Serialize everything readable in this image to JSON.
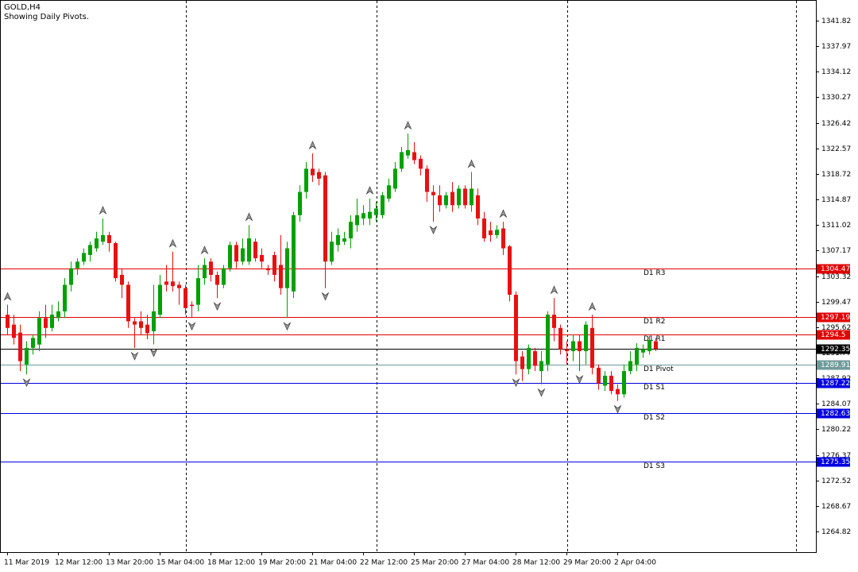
{
  "chart_data": {
    "type": "candlestick",
    "title": "GOLD,H4",
    "subtitle": "Showing Daily Pivots.",
    "categories": [
      "11 Mar 2019",
      null,
      null,
      null,
      null,
      null,
      null,
      null,
      "12 Mar 12:00",
      null,
      null,
      null,
      null,
      null,
      null,
      null,
      "13 Mar 20:00",
      null,
      null,
      null,
      null,
      null,
      null,
      null,
      "15 Mar 04:00",
      null,
      null,
      null,
      null,
      null,
      null,
      null,
      "18 Mar 12:00",
      null,
      null,
      null,
      null,
      null,
      null,
      null,
      "19 Mar 20:00",
      null,
      null,
      null,
      null,
      null,
      null,
      null,
      "21 Mar 04:00",
      null,
      null,
      null,
      null,
      null,
      null,
      null,
      "22 Mar 12:00",
      null,
      null,
      null,
      null,
      null,
      null,
      null,
      "25 Mar 20:00",
      null,
      null,
      null,
      null,
      null,
      null,
      null,
      "27 Mar 04:00",
      null,
      null,
      null,
      null,
      null,
      null,
      null,
      "28 Mar 12:00",
      null,
      null,
      null,
      null,
      null,
      null,
      null,
      "29 Mar 20:00",
      null,
      null,
      null,
      null,
      null,
      null,
      null,
      "2 Apr 04:00",
      null,
      null,
      null,
      null,
      null,
      null
    ],
    "open": [
      1297.5,
      1296,
      1294.8,
      1290,
      1292.5,
      1293,
      1297,
      1295.5,
      1297,
      1298,
      1302,
      1304.5,
      1305.5,
      1306.5,
      1307.5,
      1308.5,
      1309.5,
      1308.3,
      1303.5,
      1302,
      1296.5,
      1296.5,
      1296,
      1295,
      1297.5,
      1302.5,
      1302.5,
      1302,
      1301.5,
      1299,
      1299,
      1303,
      1305.5,
      1303.5,
      1302,
      1304.5,
      1308,
      1305.5,
      1305.5,
      1308.5,
      1306.5,
      1304.5,
      1306.5,
      1305,
      1301.5,
      1301,
      1312.5,
      1316,
      1319.5,
      1319,
      1318.5,
      1305.5,
      1308,
      1308.5,
      1309,
      1311,
      1312,
      1312,
      1312.5,
      1312.5,
      1315,
      1316.5,
      1319.5,
      1321.5,
      1322,
      1321,
      1319.5,
      1316,
      1315.5,
      1314,
      1316,
      1314,
      1316.5,
      1314,
      1315.5,
      1312,
      1310.2,
      1309.5,
      1310.5,
      1307.8,
      1300.5,
      1291.2,
      1289.3,
      1292,
      1289,
      1290,
      1297.5,
      1295.5,
      1292.3,
      1292,
      1293.5,
      1292,
      1295.5,
      1289.5,
      1286.8,
      1288.3,
      1286.3,
      1285.5,
      1289,
      1290,
      1291.8,
      1292,
      1293.5
    ],
    "high": [
      1299,
      1297.5,
      1296,
      1293.5,
      1294.5,
      1298,
      1299,
      1299,
      1299.5,
      1303,
      1305.5,
      1306,
      1307.5,
      1308.5,
      1310,
      1312,
      1310,
      1308.5,
      1304.5,
      1302.5,
      1297,
      1298,
      1297.5,
      1302,
      1303.5,
      1305,
      1307,
      1302.5,
      1302,
      1299.5,
      1305,
      1306,
      1306,
      1304,
      1305,
      1308.5,
      1308.5,
      1309,
      1311,
      1309,
      1307.5,
      1305,
      1307,
      1309.5,
      1308.5,
      1313,
      1317,
      1320.5,
      1321.8,
      1319.5,
      1319,
      1310,
      1310.5,
      1310,
      1312.5,
      1315,
      1314,
      1315,
      1314.5,
      1316,
      1318,
      1320.5,
      1322.8,
      1324.8,
      1323.5,
      1321.5,
      1320,
      1317,
      1317,
      1316,
      1317.5,
      1317,
      1317,
      1319,
      1316.5,
      1313,
      1311.5,
      1311,
      1311.5,
      1308,
      1301,
      1292,
      1293,
      1292.5,
      1292,
      1298,
      1300,
      1296,
      1293.5,
      1294.5,
      1294.5,
      1296.5,
      1297.5,
      1290,
      1289,
      1289,
      1287,
      1290,
      1292,
      1293.2,
      1293,
      1294.3,
      1294
    ],
    "low": [
      1294.5,
      1293,
      1289,
      1288.5,
      1291.5,
      1292,
      1294,
      1295,
      1296.5,
      1297,
      1301,
      1303.5,
      1305,
      1305.5,
      1307,
      1308,
      1307,
      1302.5,
      1300,
      1295.5,
      1292.5,
      1294.5,
      1293.8,
      1293,
      1297,
      1301,
      1301,
      1299,
      1297.5,
      1297,
      1298,
      1302,
      1302.5,
      1300,
      1301.5,
      1304,
      1304.5,
      1305,
      1305,
      1305.5,
      1304.5,
      1303.5,
      1302.5,
      1300.5,
      1297,
      1300,
      1311.5,
      1315,
      1317.5,
      1317,
      1301.5,
      1305,
      1307,
      1308,
      1307.5,
      1310,
      1311,
      1311,
      1311.5,
      1312,
      1314.5,
      1316,
      1319,
      1321,
      1320.2,
      1318.5,
      1314.5,
      1311.5,
      1313,
      1313.5,
      1313,
      1313.5,
      1313.5,
      1313,
      1311,
      1308.5,
      1308.5,
      1309,
      1306.5,
      1299.5,
      1288.5,
      1287.5,
      1288.5,
      1289,
      1287,
      1289,
      1293.5,
      1291.5,
      1290,
      1290.5,
      1289,
      1290,
      1288.5,
      1286.2,
      1286,
      1285.5,
      1284.5,
      1285,
      1288.5,
      1289,
      1291,
      1291.5,
      1292
    ],
    "close": [
      1295.5,
      1294,
      1290.5,
      1292.5,
      1294,
      1297,
      1295.5,
      1297.5,
      1298,
      1302,
      1304.5,
      1305.5,
      1306.8,
      1308,
      1309,
      1309.5,
      1308.3,
      1303,
      1302,
      1296.5,
      1296,
      1295.5,
      1294.7,
      1298,
      1302,
      1302,
      1301.8,
      1301.5,
      1298.5,
      1298.8,
      1303,
      1305,
      1303.5,
      1302,
      1304.5,
      1308,
      1305.5,
      1307.5,
      1309,
      1306,
      1305.5,
      1304.2,
      1303.5,
      1301.5,
      1307.5,
      1312.5,
      1316,
      1319.5,
      1318.5,
      1318,
      1305.5,
      1308.5,
      1309.5,
      1309,
      1311.5,
      1312.5,
      1312.8,
      1313,
      1313.5,
      1315.5,
      1317,
      1319.5,
      1322,
      1322.3,
      1320.8,
      1319.5,
      1316,
      1315.5,
      1314,
      1315.5,
      1314,
      1316.5,
      1314,
      1316.5,
      1312,
      1309,
      1309.5,
      1310.3,
      1307.5,
      1300.5,
      1290.5,
      1289.3,
      1292.5,
      1289.8,
      1290.5,
      1297.5,
      1295.5,
      1292.3,
      1292,
      1293.5,
      1292,
      1296,
      1289.5,
      1287.2,
      1288.3,
      1286,
      1285.5,
      1289,
      1290.5,
      1292.5,
      1292.3,
      1293.7,
      1292.35
    ],
    "fractals_up": [
      1299,
      null,
      null,
      null,
      null,
      null,
      null,
      null,
      null,
      null,
      null,
      null,
      null,
      null,
      null,
      1312,
      null,
      null,
      null,
      null,
      null,
      null,
      null,
      null,
      null,
      null,
      1307,
      null,
      null,
      null,
      null,
      1306,
      null,
      null,
      null,
      null,
      null,
      null,
      1311,
      null,
      null,
      null,
      null,
      null,
      null,
      null,
      null,
      null,
      1321.8,
      null,
      null,
      null,
      null,
      null,
      null,
      null,
      null,
      1315,
      null,
      null,
      null,
      null,
      null,
      1324.8,
      null,
      null,
      null,
      null,
      null,
      null,
      null,
      null,
      null,
      1319,
      null,
      null,
      null,
      null,
      1311.5,
      null,
      null,
      null,
      null,
      null,
      null,
      null,
      1300,
      null,
      null,
      null,
      null,
      null,
      1297.5,
      null,
      null,
      null,
      null,
      null,
      null,
      null,
      null,
      null,
      null
    ],
    "fractals_down": [
      null,
      null,
      null,
      1288.5,
      null,
      null,
      null,
      null,
      null,
      null,
      null,
      null,
      null,
      null,
      null,
      null,
      null,
      null,
      null,
      null,
      1292.5,
      null,
      null,
      1293,
      null,
      null,
      null,
      null,
      null,
      1297,
      null,
      null,
      null,
      1300,
      null,
      null,
      null,
      null,
      null,
      null,
      null,
      null,
      null,
      null,
      1297,
      null,
      null,
      null,
      null,
      null,
      1301.5,
      null,
      null,
      null,
      null,
      null,
      null,
      null,
      null,
      null,
      null,
      null,
      null,
      null,
      null,
      null,
      null,
      1311.5,
      null,
      null,
      null,
      null,
      null,
      null,
      null,
      null,
      null,
      null,
      null,
      null,
      1288.5,
      null,
      null,
      null,
      1287,
      null,
      null,
      null,
      null,
      null,
      1289,
      null,
      null,
      null,
      null,
      null,
      1284.5,
      null,
      null,
      null,
      null,
      null,
      null
    ],
    "up_color": "#00a000",
    "down_color": "#e81010",
    "ylim": [
      1261.71,
      1344.93
    ],
    "yticks": [
      1341.82,
      1337.97,
      1334.12,
      1330.27,
      1326.42,
      1322.57,
      1318.72,
      1314.87,
      1311.02,
      1307.17,
      1303.32,
      1299.47,
      1295.62,
      1291.77,
      1287.92,
      1284.07,
      1280.22,
      1276.37,
      1272.52,
      1268.67,
      1264.82
    ],
    "pivots": [
      {
        "label": "D1 R3",
        "value": 1304.47,
        "color": "#e00000"
      },
      {
        "label": "D1 R2",
        "value": 1297.19,
        "color": "#e00000"
      },
      {
        "label": "D1 R1",
        "value": 1294.5,
        "color": "#e00000"
      },
      {
        "label": "D1 Pivot",
        "value": 1289.91,
        "color": "#6f9a9a"
      },
      {
        "label": "D1 S1",
        "value": 1287.22,
        "color": "#0000e0"
      },
      {
        "label": "D1 S2",
        "value": 1282.63,
        "color": "#0000e0"
      },
      {
        "label": "D1 S3",
        "value": 1275.35,
        "color": "#0000e0"
      }
    ],
    "last_price": 1292.35,
    "last_color": "#000000"
  }
}
